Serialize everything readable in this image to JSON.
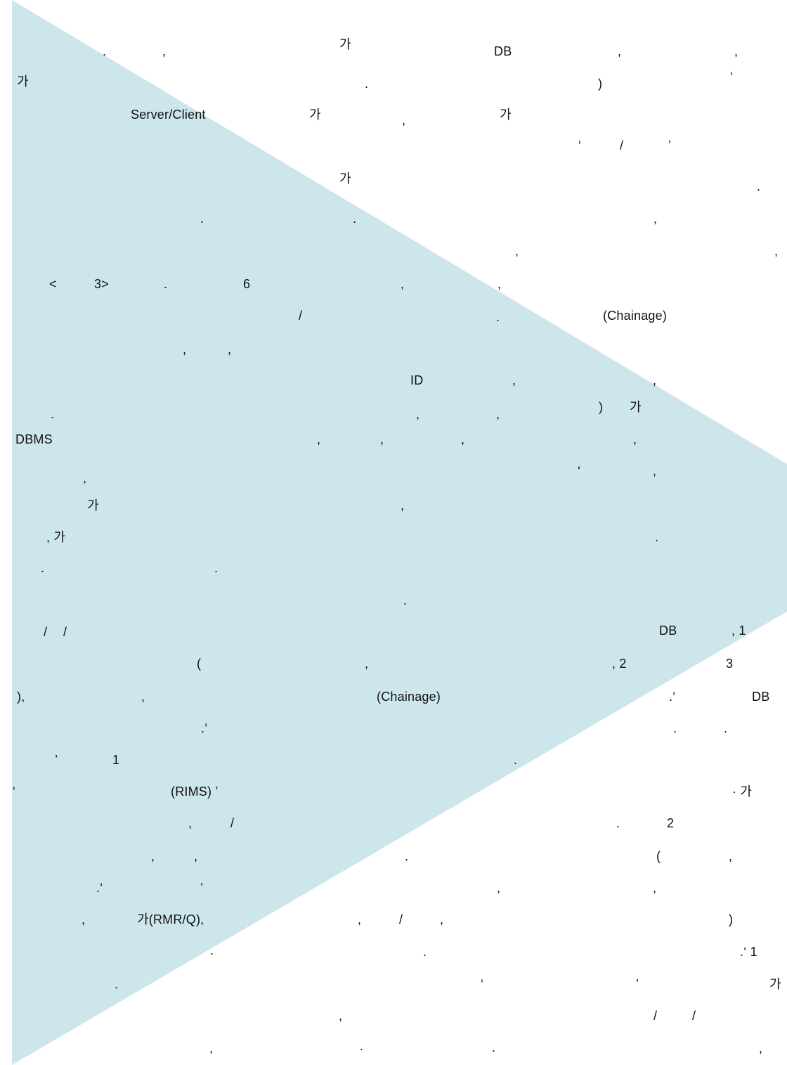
{
  "colors": {
    "background": "#ffffff",
    "watermark_triangle": "#cde6ec",
    "text": "#111111"
  },
  "fragments": [
    ".",
    ",",
    "가",
    "DB",
    ",",
    ",",
    "가",
    ".",
    ")",
    "‘",
    "Server/Client",
    "가",
    ",",
    "가",
    "‘",
    "/",
    "’",
    "가",
    ".",
    ".",
    ".",
    ",",
    ",",
    ",",
    "<",
    "3>",
    ".",
    "6",
    ",",
    ",",
    "/",
    ".",
    "(Chainage)",
    ",",
    ",",
    "ID",
    ",",
    ",",
    ".",
    ",",
    ",",
    ")",
    "가",
    "DBMS",
    ",",
    ",",
    ",",
    ",",
    "‘",
    ",",
    ",",
    "가",
    ",",
    ", 가",
    ".",
    ".",
    ".",
    ".",
    "/",
    "/",
    "DB",
    ", 1",
    "(",
    ",",
    ", 2",
    "3",
    "),",
    ",",
    "(Chainage)",
    ".‘",
    "DB",
    ".‘",
    ".",
    ".",
    "’",
    "1",
    ".",
    "‘",
    "(RIMS) ’",
    "· 가",
    ",",
    "/",
    ".",
    "2",
    ",",
    ",",
    ".",
    "(",
    ",",
    ".‘",
    "’",
    ",",
    ",",
    ",",
    "가(RMR/Q),",
    ",",
    "/",
    ",",
    ")",
    ".",
    ".",
    ".‘ 1",
    ".",
    "‘",
    "’",
    "가",
    ",",
    "/",
    "/",
    ",",
    ".",
    ".",
    ","
  ]
}
